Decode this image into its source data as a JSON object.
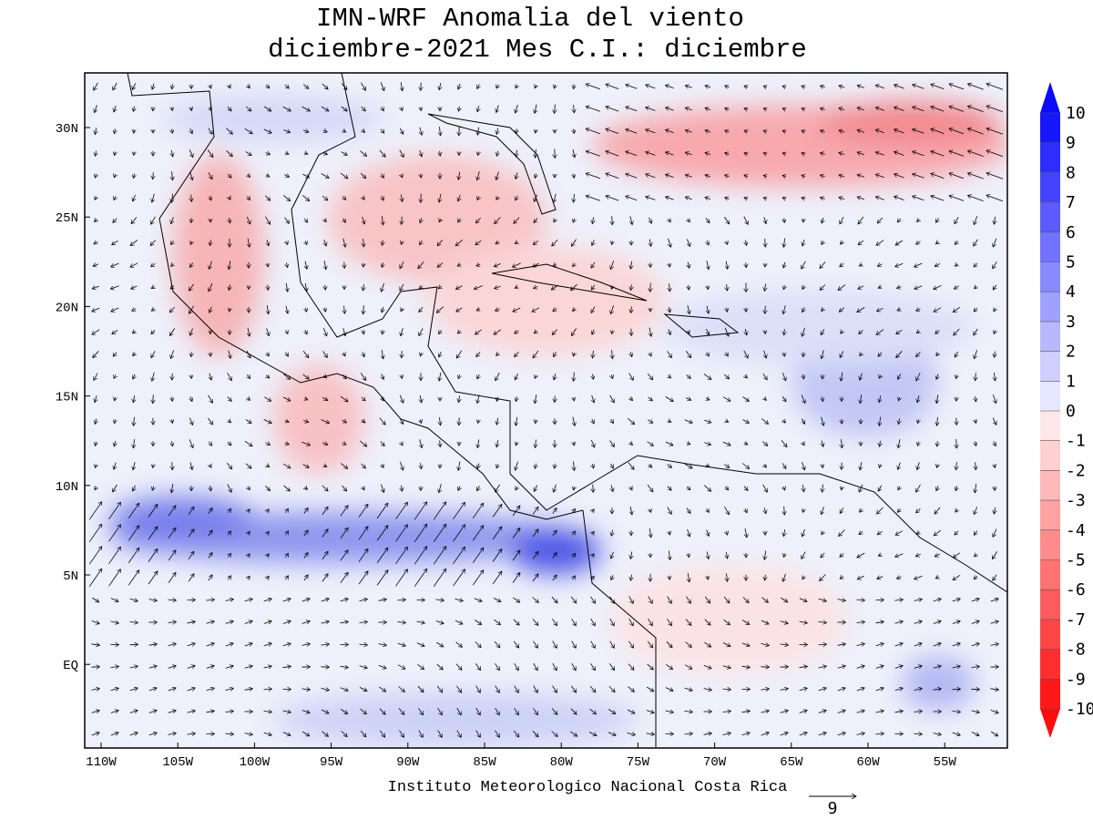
{
  "title": {
    "line1": "IMN-WRF Anomalia del viento",
    "line2": "diciembre-2021 Mes C.I.: diciembre"
  },
  "map": {
    "lon_labels": [
      "110W",
      "105W",
      "100W",
      "95W",
      "90W",
      "85W",
      "80W",
      "75W",
      "70W",
      "65W",
      "60W",
      "55W"
    ],
    "lat_labels": [
      "30N",
      "25N",
      "20N",
      "15N",
      "10N",
      "5N",
      "EQ"
    ]
  },
  "colorbar": {
    "labels": [
      "10",
      "9",
      "8",
      "7",
      "6",
      "5",
      "4",
      "3",
      "2",
      "1",
      "0",
      "-1",
      "-2",
      "-3",
      "-4",
      "-5",
      "-6",
      "-7",
      "-8",
      "-9",
      "-10"
    ]
  },
  "footer": "Instituto Meteorologico Nacional Costa Rica",
  "reference_vector": {
    "label": "9"
  }
}
